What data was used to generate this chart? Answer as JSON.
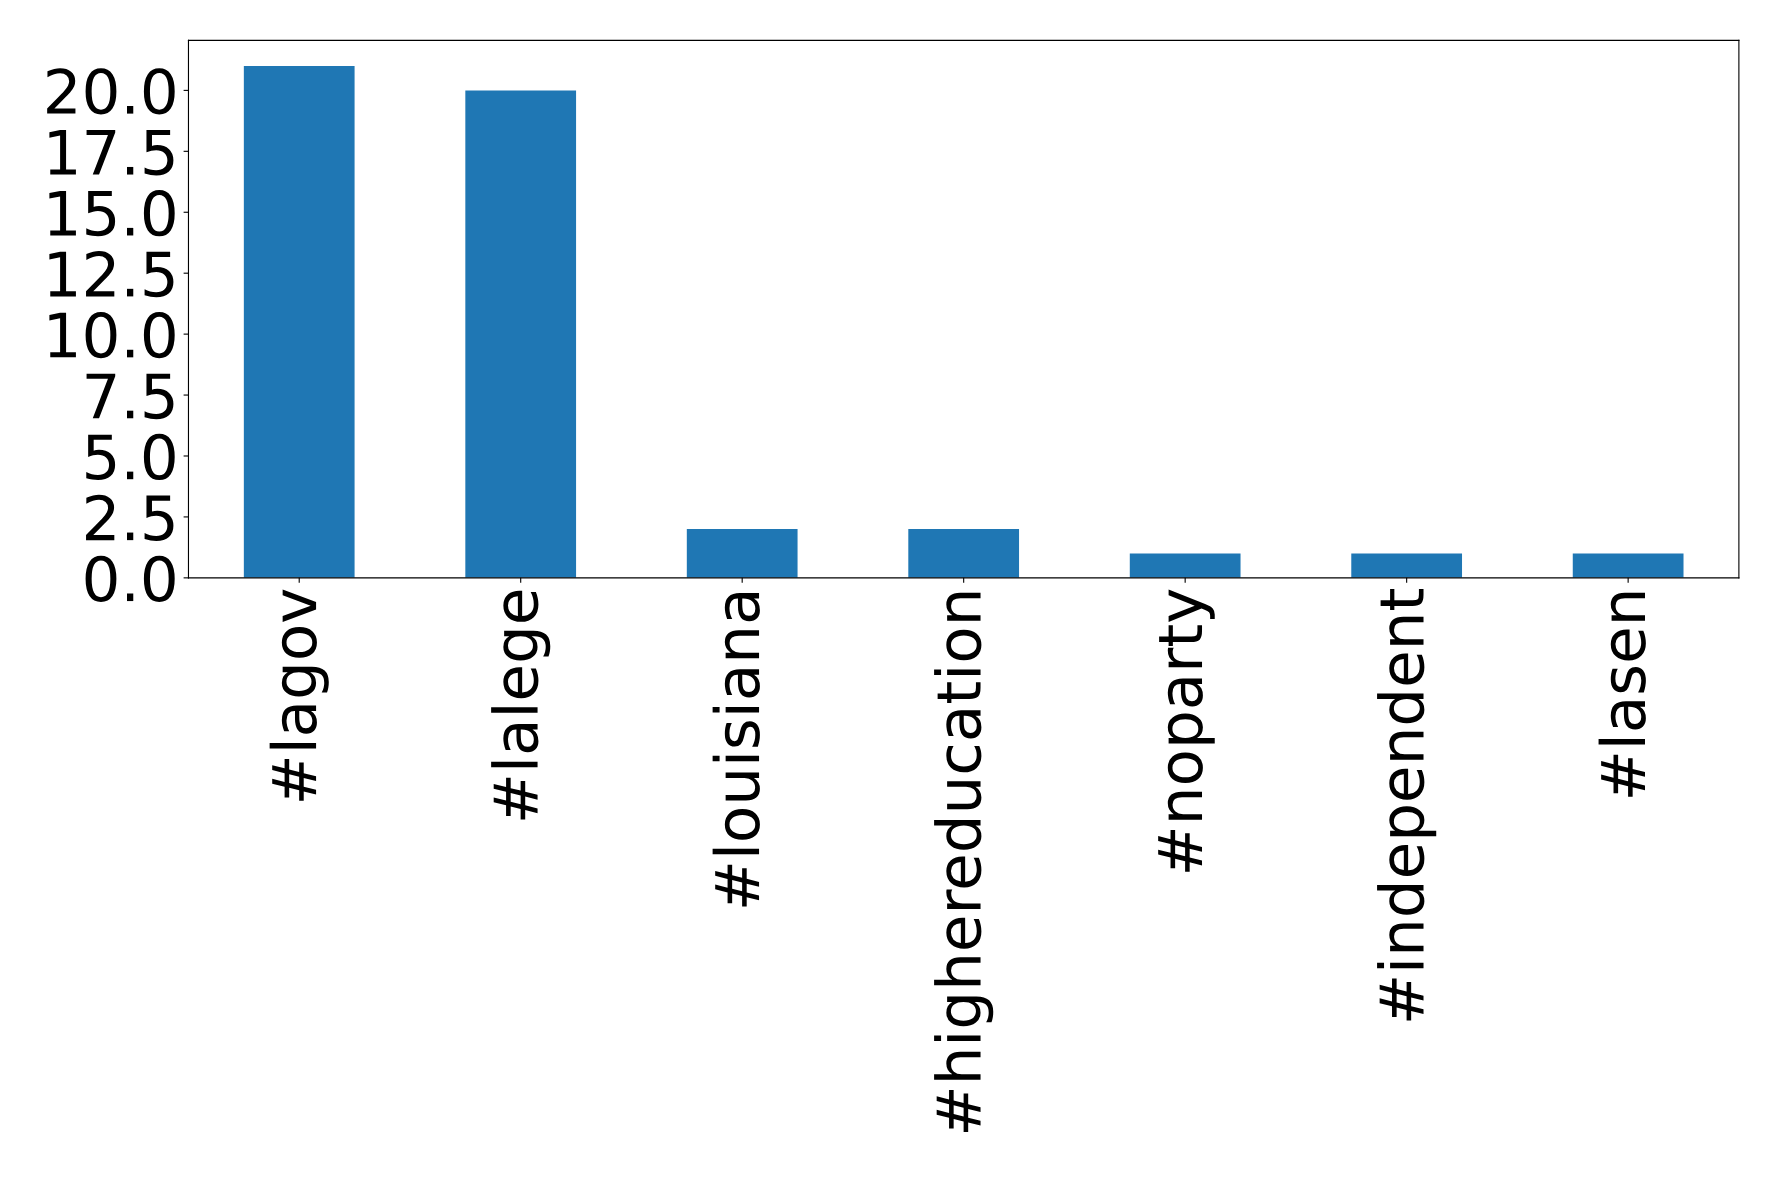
{
  "chart_data": {
    "type": "bar",
    "categories": [
      "#lagov",
      "#lalege",
      "#louisiana",
      "#highereducation",
      "#noparty",
      "#independent",
      "#lasen"
    ],
    "values": [
      21,
      20,
      2,
      2,
      1,
      1,
      1
    ],
    "color": "#1f77b4",
    "ylim": [
      0,
      22.05
    ],
    "yticks": [
      {
        "value": 0,
        "label": "0.0"
      },
      {
        "value": 2.5,
        "label": "2.5"
      },
      {
        "value": 5,
        "label": "5.0"
      },
      {
        "value": 7.5,
        "label": "7.5"
      },
      {
        "value": 10,
        "label": "10.0"
      },
      {
        "value": 12.5,
        "label": "12.5"
      },
      {
        "value": 15,
        "label": "15.0"
      },
      {
        "value": 17.5,
        "label": "17.5"
      },
      {
        "value": 20,
        "label": "20.0"
      }
    ],
    "grid": false,
    "legend": false
  }
}
